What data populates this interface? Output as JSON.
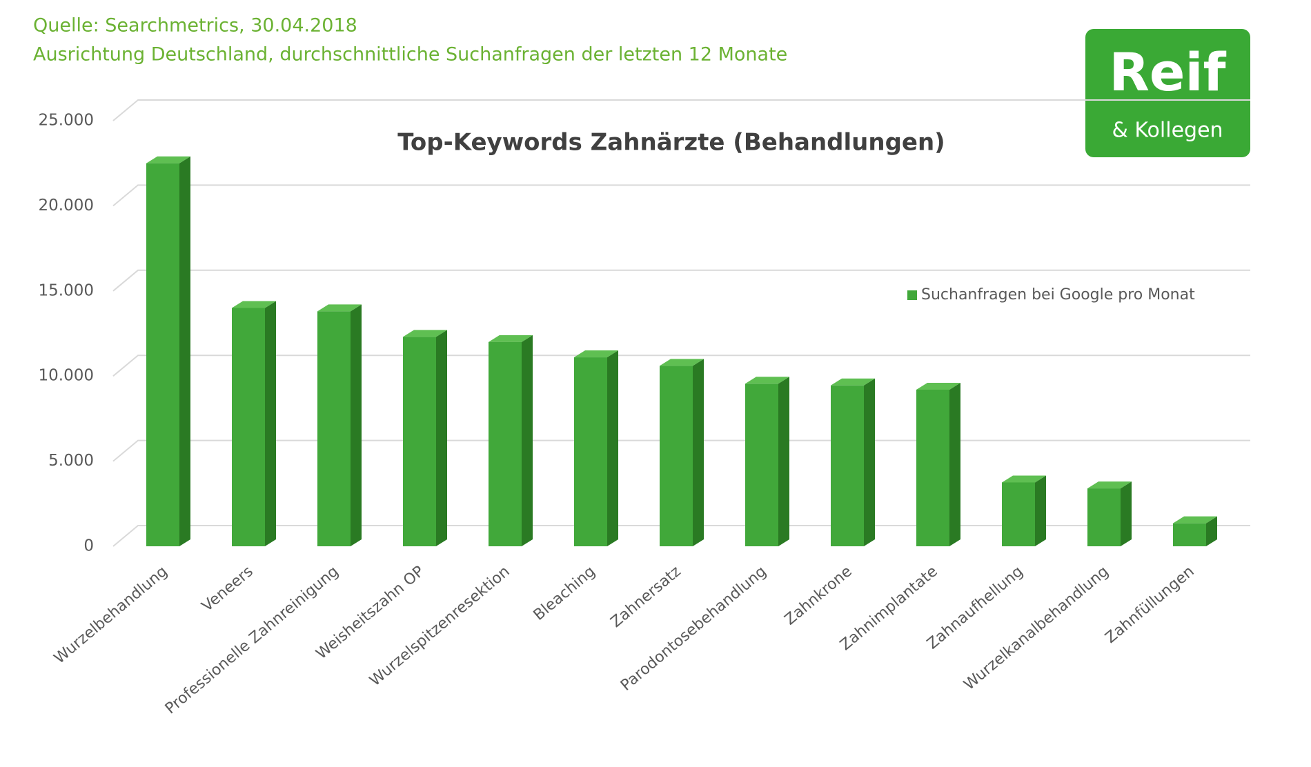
{
  "chart_data": {
    "type": "bar3d",
    "source": "Quelle: Searchmetrics, 30.04.2018",
    "subtitle": "Ausrichtung Deutschland, durchschnittliche Suchanfragen der letzten 12 Monate",
    "title": "Top-Keywords Zahnärzte (Behandlungen)",
    "categories": [
      "Wurzelbehandlung",
      "Veneers",
      "Professionelle Zahnreinigung",
      "Weisheitszahn OP",
      "Wurzelspitzenresektion",
      "Bleaching",
      "Zahnersatz",
      "Parodontosebehandlung",
      "Zahnkrone",
      "Zahnimplantate",
      "Zahnaufhellung",
      "Wurzelkanalbehandlung",
      "Zahnfüllungen"
    ],
    "series": [
      {
        "name": "Suchanfragen bei Google pro Monat",
        "color": "#41a83a",
        "values": [
          22500,
          14000,
          13800,
          12300,
          12000,
          11100,
          10600,
          9550,
          9450,
          9200,
          3750,
          3400,
          1350
        ]
      }
    ],
    "ylim": [
      0,
      25000
    ],
    "yticks": [
      0,
      {
        "value": 5000,
        "label": "5.000"
      },
      {
        "value": 10000,
        "label": "10.000"
      },
      {
        "value": 15000,
        "label": "15.000"
      },
      {
        "value": 20000,
        "label": "20.000"
      },
      {
        "value": 25000,
        "label": "25.000"
      }
    ],
    "grid": true,
    "legend": "right"
  },
  "logo": {
    "text": "Reif",
    "subtext": "& Kollegen"
  }
}
